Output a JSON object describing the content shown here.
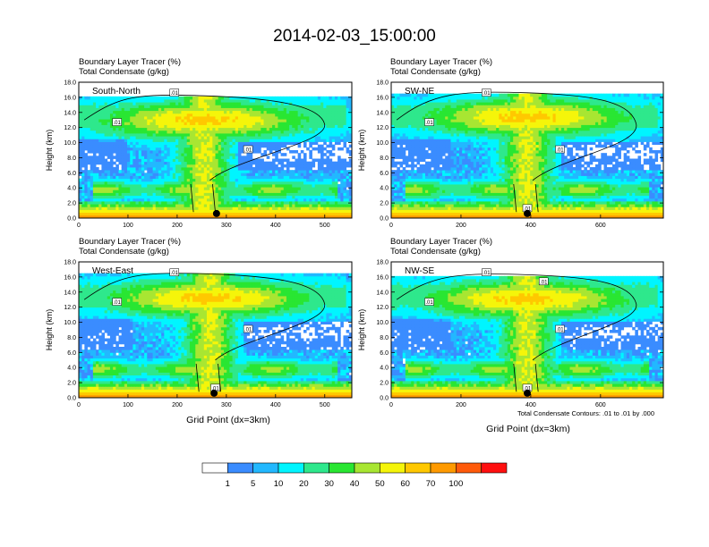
{
  "title": "2014-02-03_15:00:00",
  "panels": [
    {
      "name": "south-north",
      "label": "South-North",
      "line1": "Boundary Layer Tracer   (%)",
      "line2": "Total Condensate   (g/kg)",
      "ylabel": "Height (km)",
      "xlabel": "",
      "xticks": [
        "0",
        "100",
        "200",
        "300",
        "400",
        "500"
      ],
      "xmax": 555,
      "core": 0.46,
      "anvil_top": 16.2,
      "marker_x": 280,
      "contour_labels": [
        ".01",
        ".01",
        ".01"
      ]
    },
    {
      "name": "sw-ne",
      "label": "SW-NE",
      "line1": "Boundary Layer Tracer   (%)",
      "line2": "Total Condensate   (g/kg)",
      "ylabel": "Height (km)",
      "xlabel": "",
      "xticks": [
        "0",
        "200",
        "400",
        "600"
      ],
      "xmax": 780,
      "core": 0.5,
      "anvil_top": 16.6,
      "marker_x": 390,
      "contour_labels": [
        ".01",
        ".01",
        ".01",
        ".01"
      ]
    },
    {
      "name": "west-east",
      "label": "West-East",
      "line1": "Boundary Layer Tracer   (%)",
      "line2": "Total Condensate   (g/kg)",
      "ylabel": "Height (km)",
      "xlabel": "Grid Point (dx=3km)",
      "xticks": [
        "0",
        "100",
        "200",
        "300",
        "400",
        "500"
      ],
      "xmax": 555,
      "core": 0.48,
      "anvil_top": 16.4,
      "marker_x": 275,
      "contour_labels": [
        ".01",
        ".01",
        ".01",
        ".01"
      ]
    },
    {
      "name": "nw-se",
      "label": "NW-SE",
      "line1": "Boundary Layer Tracer   (%)",
      "line2": "Total Condensate   (g/kg)",
      "ylabel": "Height (km)",
      "xlabel": "Grid Point (dx=3km)",
      "xticks": [
        "0",
        "200",
        "400",
        "600"
      ],
      "xmax": 780,
      "core": 0.5,
      "anvil_top": 16.3,
      "marker_x": 390,
      "contour_labels": [
        ".01",
        ".01",
        ".01",
        ".01",
        ".01"
      ]
    }
  ],
  "yticks": [
    "0.0",
    "2.0",
    "4.0",
    "6.0",
    "8.0",
    "10.0",
    "12.0",
    "14.0",
    "16.0",
    "18.0"
  ],
  "contour_note": "Total Condensate Contours: .01 to .01 by .000",
  "colorbar": {
    "levels": [
      "1",
      "5",
      "10",
      "20",
      "30",
      "40",
      "50",
      "60",
      "70",
      "100"
    ],
    "colors": [
      "#ffffff",
      "#3a8cff",
      "#22b8ff",
      "#00f5ff",
      "#2ee88c",
      "#29e632",
      "#a8e632",
      "#f5f50a",
      "#ffc800",
      "#ff9a00",
      "#ff5a0a",
      "#ff0f0f"
    ]
  },
  "chart_data": {
    "type": "heatmap",
    "title": "2014-02-03_15:00:00",
    "variables": [
      "Boundary Layer Tracer (%)",
      "Total Condensate (g/kg)"
    ],
    "ylabel": "Height (km)",
    "xlabel": "Grid Point (dx=3km)",
    "ylim": [
      0,
      18
    ],
    "color_levels": [
      1,
      5,
      10,
      20,
      30,
      40,
      50,
      60,
      70,
      100
    ],
    "contour": {
      "min": 0.01,
      "max": 0.01,
      "interval": 0.0
    },
    "panels": [
      {
        "label": "South-North",
        "xlim": [
          0,
          555
        ]
      },
      {
        "label": "SW-NE",
        "xlim": [
          0,
          780
        ]
      },
      {
        "label": "West-East",
        "xlim": [
          0,
          555
        ]
      },
      {
        "label": "NW-SE",
        "xlim": [
          0,
          780
        ]
      }
    ]
  }
}
